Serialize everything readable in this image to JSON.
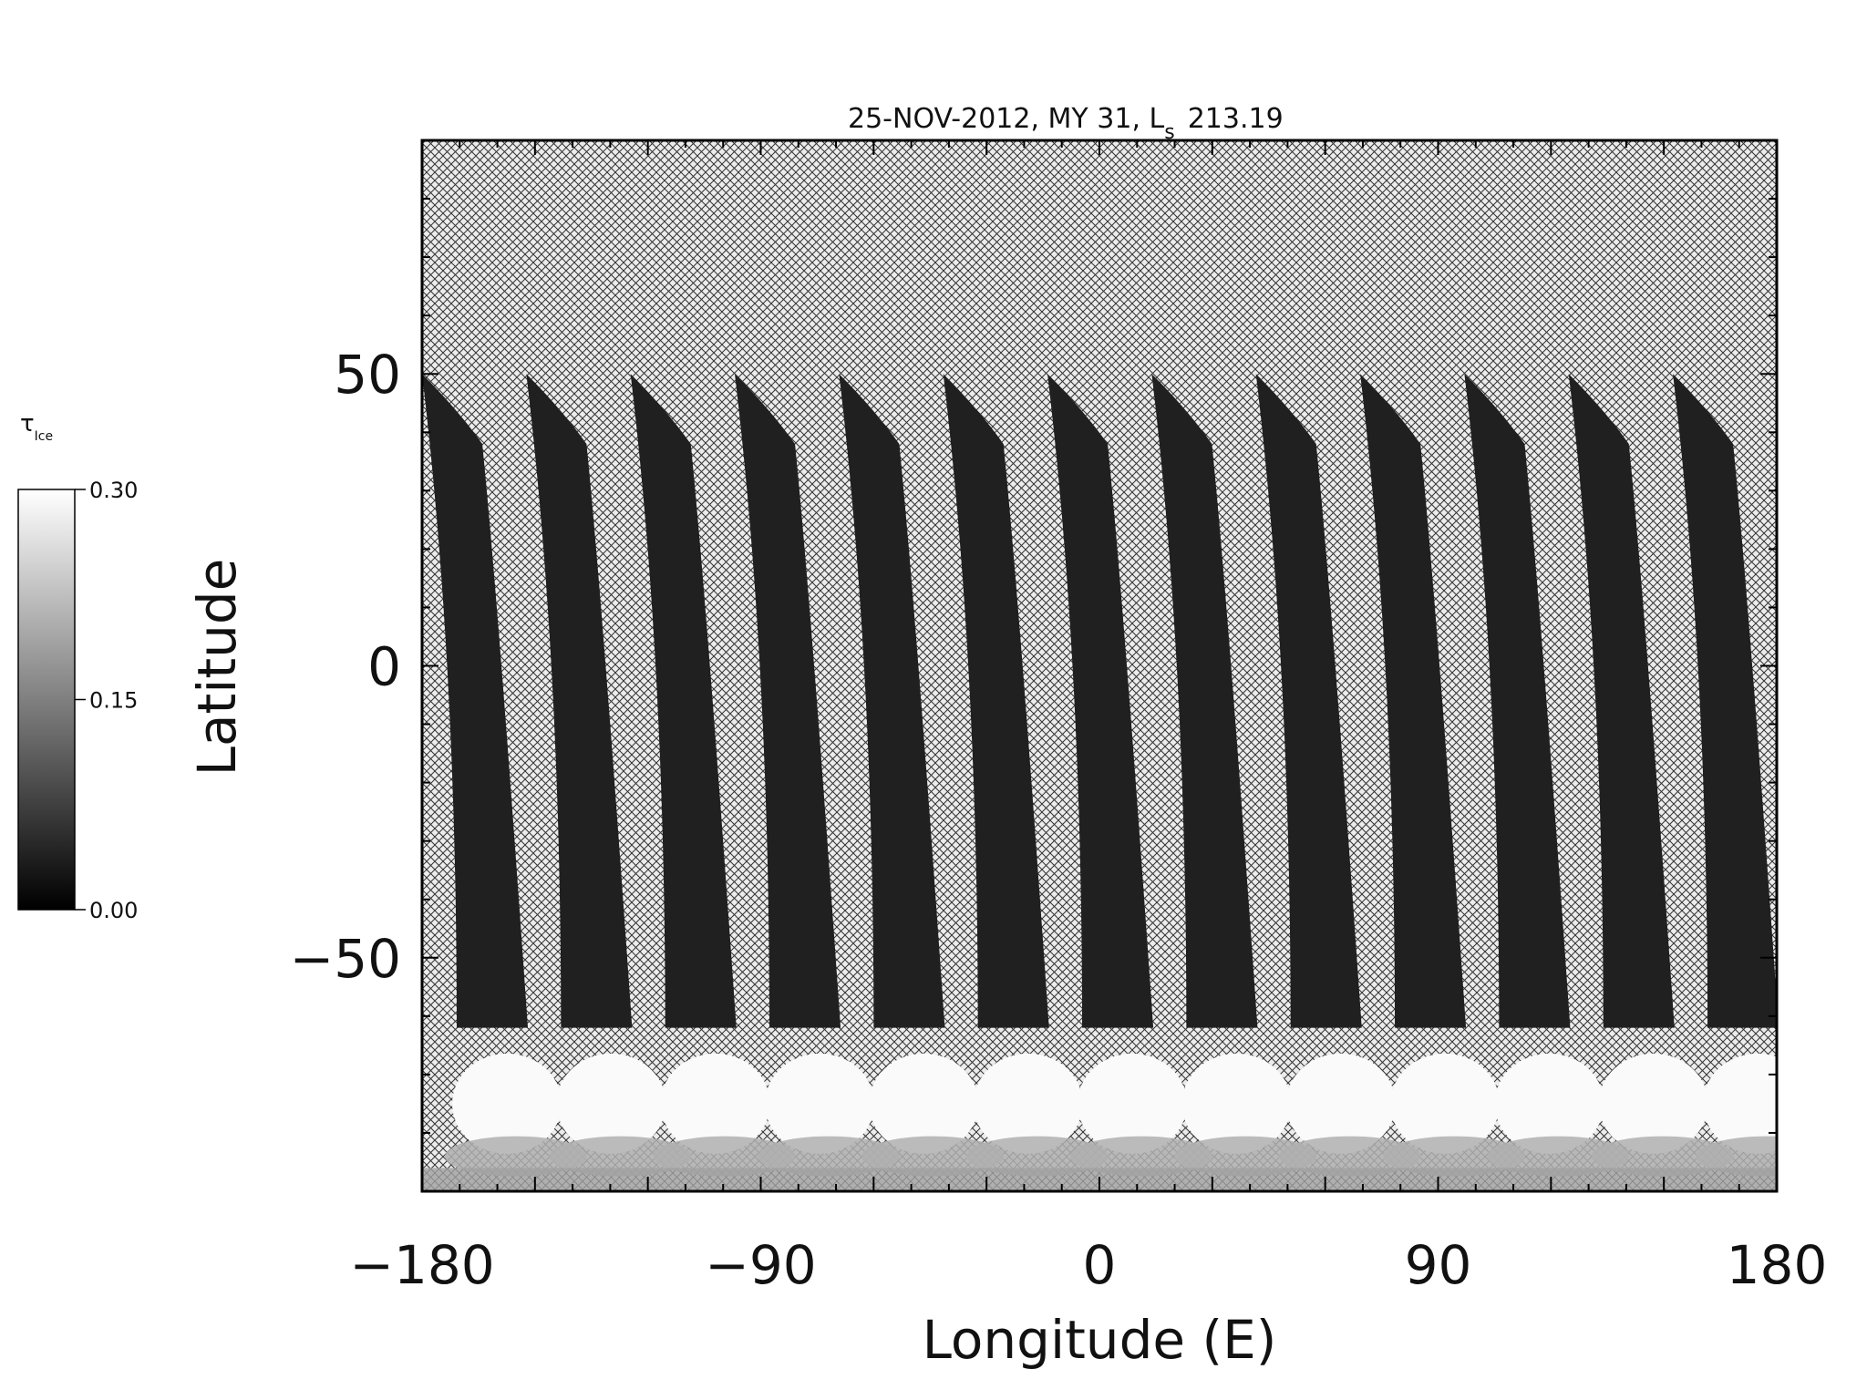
{
  "chart_data": {
    "type": "heatmap",
    "title": "25-NOV-2012, MY 31,  L",
    "title_subscript": "s",
    "title_suffix": "213.19",
    "xlabel": "Longitude (E)",
    "ylabel": "Latitude",
    "xlim": [
      -180,
      180
    ],
    "ylim": [
      -90,
      90
    ],
    "x_ticks": [
      -180,
      -90,
      0,
      90,
      180
    ],
    "x_tick_labels": [
      "−180",
      "−90",
      "0",
      "90",
      "180"
    ],
    "y_ticks": [
      -50,
      0,
      50
    ],
    "y_tick_labels": [
      "−50",
      "0",
      "50"
    ],
    "grid": false,
    "colorscale": "grayscale",
    "missing_data": "cross-hatched",
    "colorbar": {
      "label": "τ",
      "label_subscript": "Ice",
      "min": 0.0,
      "max": 0.3,
      "tick_values": [
        0.0,
        0.15,
        0.3
      ],
      "tick_labels": [
        "0.00",
        "0.15",
        "0.30"
      ],
      "placement": "left"
    },
    "swaths": {
      "count": 13,
      "start_longitude": -180,
      "spacing_deg": 27.7,
      "north_limit_lat": 50,
      "south_limit_lat": -88,
      "typical_value": 0.01,
      "south_polar_value": 0.3
    }
  }
}
